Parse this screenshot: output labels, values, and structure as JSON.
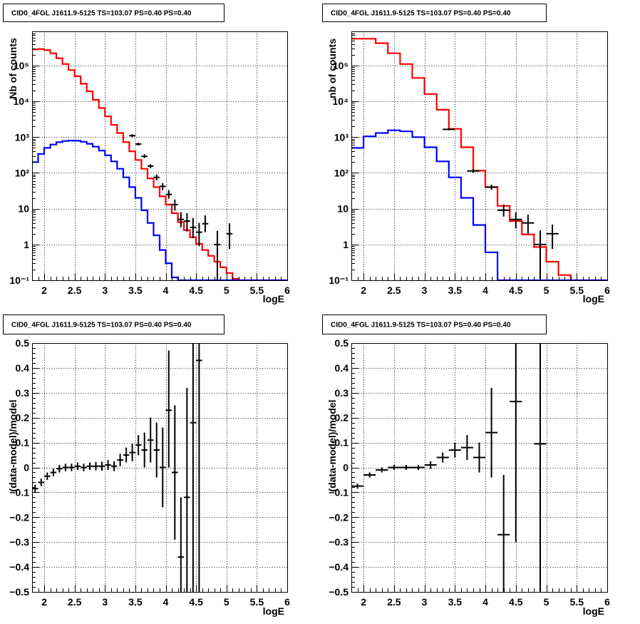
{
  "colors": {
    "data": "#000000",
    "total_model": "#ff0000",
    "source_model": "#0000ff",
    "grid": "#000000"
  },
  "chart_data": [
    {
      "type": "line",
      "title": "CID0_4FGL J1611.9-5125 TS=103.07 PS=0.40 PS=0.40",
      "xlabel": "logE",
      "ylabel": "Nb of counts",
      "log_y": true,
      "xlim": [
        1.8,
        6.0
      ],
      "ylim": [
        0.1,
        900000
      ],
      "grid": true,
      "x_ticks": [
        "2",
        "2.5",
        "3",
        "3.5",
        "4",
        "4.5",
        "5",
        "5.5",
        "6"
      ],
      "y_ticks": [
        "10⁻¹",
        "1",
        "10",
        "10²",
        "10³",
        "10⁴",
        "10⁵"
      ],
      "bin_edges": [
        1.8,
        1.9,
        2.0,
        2.1,
        2.2,
        2.3,
        2.4,
        2.5,
        2.6,
        2.7,
        2.8,
        2.9,
        3.0,
        3.1,
        3.2,
        3.3,
        3.4,
        3.5,
        3.6,
        3.7,
        3.8,
        3.9,
        4.0,
        4.1,
        4.2,
        4.3,
        4.4,
        4.5,
        4.6,
        4.7,
        4.8,
        4.9,
        5.0,
        5.1,
        5.2,
        5.3,
        5.4,
        5.5,
        5.6,
        5.7,
        5.8,
        5.9,
        6.0
      ],
      "series": [
        {
          "role": "total_model",
          "values": [
            280000,
            290000,
            270000,
            220000,
            160000,
            110000,
            75000,
            50000,
            31000,
            19000,
            11000,
            6500,
            3800,
            2200,
            1300,
            720,
            400,
            230,
            130,
            70,
            40,
            22,
            13,
            7.5,
            4.2,
            2.5,
            1.6,
            1.05,
            0.7,
            0.48,
            0.33,
            0.23,
            0.16,
            0.11,
            0.1,
            0.1,
            0.1,
            0.1,
            0.1,
            0.1,
            0.1,
            0.1
          ]
        },
        {
          "role": "source_model",
          "values": [
            200,
            340,
            500,
            620,
            720,
            780,
            800,
            790,
            740,
            650,
            540,
            420,
            310,
            210,
            130,
            75,
            40,
            20,
            9,
            4,
            1.8,
            0.7,
            0.3,
            0.12,
            0.1,
            0.1,
            0.1,
            0.1,
            0.1,
            0.1,
            0.1,
            0.1,
            0.1,
            0.1,
            0.1,
            0.1,
            0.1,
            0.1,
            0.1,
            0.1,
            0.1,
            0.1
          ]
        }
      ],
      "data_points": [
        {
          "x": 3.45,
          "y": 1100,
          "xerr": 0.05,
          "ylo": 1000,
          "yhi": 1200
        },
        {
          "x": 3.55,
          "y": 640,
          "xerr": 0.05,
          "ylo": 580,
          "yhi": 700
        },
        {
          "x": 3.65,
          "y": 290,
          "xerr": 0.05,
          "ylo": 260,
          "yhi": 330
        },
        {
          "x": 3.75,
          "y": 155,
          "xerr": 0.05,
          "ylo": 135,
          "yhi": 175
        },
        {
          "x": 3.85,
          "y": 75,
          "xerr": 0.05,
          "ylo": 62,
          "yhi": 90
        },
        {
          "x": 3.95,
          "y": 42,
          "xerr": 0.05,
          "ylo": 33,
          "yhi": 52
        },
        {
          "x": 4.05,
          "y": 25,
          "xerr": 0.05,
          "ylo": 19,
          "yhi": 33
        },
        {
          "x": 4.15,
          "y": 13,
          "xerr": 0.05,
          "ylo": 9,
          "yhi": 18
        },
        {
          "x": 4.25,
          "y": 5,
          "xerr": 0.05,
          "ylo": 3,
          "yhi": 8
        },
        {
          "x": 4.35,
          "y": 4.5,
          "xerr": 0.05,
          "ylo": 2.3,
          "yhi": 7.5
        },
        {
          "x": 4.45,
          "y": 3,
          "xerr": 0.05,
          "ylo": 1.5,
          "yhi": 5.5
        },
        {
          "x": 4.55,
          "y": 2.2,
          "xerr": 0.05,
          "ylo": 0.9,
          "yhi": 4
        },
        {
          "x": 4.65,
          "y": 3.8,
          "xerr": 0.05,
          "ylo": 2.2,
          "yhi": 6.5
        },
        {
          "x": 4.85,
          "y": 1,
          "xerr": 0.05,
          "ylo": 0.1,
          "yhi": 2.4
        },
        {
          "x": 5.05,
          "y": 2,
          "xerr": 0.05,
          "ylo": 0.75,
          "yhi": 3.9
        }
      ]
    },
    {
      "type": "line",
      "title": "CID0_4FGL J1611.9-5125 TS=103.07 PS=0.40 PS=0.40",
      "xlabel": "logE",
      "ylabel": "nb of counts",
      "log_y": true,
      "xlim": [
        1.8,
        6.0
      ],
      "ylim": [
        0.1,
        900000
      ],
      "grid": true,
      "x_ticks": [
        "2",
        "2.5",
        "3",
        "3.5",
        "4",
        "4.5",
        "5",
        "5.5",
        "6"
      ],
      "y_ticks": [
        "10⁻¹",
        "1",
        "10",
        "10²",
        "10³",
        "10⁴",
        "10⁵"
      ],
      "bin_edges": [
        1.8,
        2.0,
        2.2,
        2.4,
        2.6,
        2.8,
        3.0,
        3.2,
        3.4,
        3.6,
        3.8,
        4.0,
        4.2,
        4.4,
        4.6,
        4.8,
        5.0,
        5.2,
        5.4,
        5.6,
        5.8,
        6.0
      ],
      "series": [
        {
          "role": "total_model",
          "values": [
            560000,
            560000,
            420000,
            220000,
            110000,
            45000,
            16000,
            5800,
            1700,
            520,
            115,
            40,
            12,
            4.5,
            1.9,
            0.85,
            0.33,
            0.14,
            0.1,
            0.1,
            0.1
          ]
        },
        {
          "role": "source_model",
          "values": [
            500,
            1050,
            1300,
            1550,
            1450,
            1000,
            520,
            210,
            75,
            20,
            3.5,
            0.6,
            0.1,
            0.1,
            0.1,
            0.1,
            0.1,
            0.1,
            0.1,
            0.1,
            0.1
          ]
        }
      ],
      "data_points": [
        {
          "x": 3.4,
          "y": 1650,
          "xerr": 0.1,
          "ylo": 1550,
          "yhi": 1750
        },
        {
          "x": 3.8,
          "y": 113,
          "xerr": 0.1,
          "ylo": 100,
          "yhi": 127
        },
        {
          "x": 4.1,
          "y": 40,
          "xerr": 0.1,
          "ylo": 34,
          "yhi": 47
        },
        {
          "x": 4.3,
          "y": 9,
          "xerr": 0.1,
          "ylo": 6,
          "yhi": 13
        },
        {
          "x": 4.5,
          "y": 5,
          "xerr": 0.1,
          "ylo": 2.8,
          "yhi": 8
        },
        {
          "x": 4.7,
          "y": 4,
          "xerr": 0.1,
          "ylo": 2,
          "yhi": 6.8
        },
        {
          "x": 4.9,
          "y": 1,
          "xerr": 0.1,
          "ylo": 0.1,
          "yhi": 2.5
        },
        {
          "x": 5.1,
          "y": 2,
          "xerr": 0.1,
          "ylo": 0.75,
          "yhi": 3.6
        }
      ]
    },
    {
      "type": "scatter",
      "title": "CID0_4FGL J1611.9-5125 TS=103.07 PS=0.40 PS=0.40",
      "xlabel": "logE",
      "ylabel": "(data-model)/model",
      "log_y": false,
      "xlim": [
        1.8,
        6.0
      ],
      "ylim": [
        -0.5,
        0.5
      ],
      "grid": true,
      "x_ticks": [
        "2",
        "2.5",
        "3",
        "3.5",
        "4",
        "4.5",
        "5",
        "5.5",
        "6"
      ],
      "y_ticks": [
        "−0.5",
        "−0.4",
        "−0.3",
        "−0.2",
        "−0.1",
        "0",
        "0.1",
        "0.2",
        "0.3",
        "0.4",
        "0.5"
      ],
      "data_points": [
        {
          "x": 1.85,
          "y": -0.085,
          "xerr": 0.05,
          "ylo": -0.1,
          "yhi": -0.07
        },
        {
          "x": 1.95,
          "y": -0.06,
          "xerr": 0.05,
          "ylo": -0.075,
          "yhi": -0.045
        },
        {
          "x": 2.05,
          "y": -0.035,
          "xerr": 0.05,
          "ylo": -0.05,
          "yhi": -0.02
        },
        {
          "x": 2.15,
          "y": -0.02,
          "xerr": 0.05,
          "ylo": -0.035,
          "yhi": -0.005
        },
        {
          "x": 2.25,
          "y": -0.005,
          "xerr": 0.05,
          "ylo": -0.02,
          "yhi": 0.01
        },
        {
          "x": 2.35,
          "y": 0.0,
          "xerr": 0.05,
          "ylo": -0.015,
          "yhi": 0.015
        },
        {
          "x": 2.45,
          "y": 0.0,
          "xerr": 0.05,
          "ylo": -0.015,
          "yhi": 0.015
        },
        {
          "x": 2.55,
          "y": 0.005,
          "xerr": 0.05,
          "ylo": -0.01,
          "yhi": 0.02
        },
        {
          "x": 2.65,
          "y": 0.0,
          "xerr": 0.05,
          "ylo": -0.015,
          "yhi": 0.015
        },
        {
          "x": 2.75,
          "y": 0.005,
          "xerr": 0.05,
          "ylo": -0.01,
          "yhi": 0.02
        },
        {
          "x": 2.85,
          "y": 0.005,
          "xerr": 0.05,
          "ylo": -0.012,
          "yhi": 0.022
        },
        {
          "x": 2.95,
          "y": 0.005,
          "xerr": 0.05,
          "ylo": -0.013,
          "yhi": 0.023
        },
        {
          "x": 3.05,
          "y": 0.01,
          "xerr": 0.05,
          "ylo": -0.01,
          "yhi": 0.03
        },
        {
          "x": 3.15,
          "y": 0.005,
          "xerr": 0.05,
          "ylo": -0.015,
          "yhi": 0.025
        },
        {
          "x": 3.25,
          "y": 0.03,
          "xerr": 0.05,
          "ylo": 0.005,
          "yhi": 0.055
        },
        {
          "x": 3.35,
          "y": 0.05,
          "xerr": 0.05,
          "ylo": 0.02,
          "yhi": 0.08
        },
        {
          "x": 3.45,
          "y": 0.06,
          "xerr": 0.05,
          "ylo": 0.025,
          "yhi": 0.095
        },
        {
          "x": 3.55,
          "y": 0.09,
          "xerr": 0.05,
          "ylo": 0.05,
          "yhi": 0.13
        },
        {
          "x": 3.65,
          "y": 0.07,
          "xerr": 0.05,
          "ylo": 0.0,
          "yhi": 0.14
        },
        {
          "x": 3.75,
          "y": 0.11,
          "xerr": 0.05,
          "ylo": 0.02,
          "yhi": 0.2
        },
        {
          "x": 3.85,
          "y": 0.07,
          "xerr": 0.05,
          "ylo": -0.04,
          "yhi": 0.18
        },
        {
          "x": 3.95,
          "y": 0.0,
          "xerr": 0.05,
          "ylo": -0.16,
          "yhi": 0.16
        },
        {
          "x": 4.05,
          "y": 0.23,
          "xerr": 0.05,
          "ylo": 0.0,
          "yhi": 0.47
        },
        {
          "x": 4.15,
          "y": -0.02,
          "xerr": 0.05,
          "ylo": -0.29,
          "yhi": 0.25
        },
        {
          "x": 4.25,
          "y": -0.36,
          "xerr": 0.05,
          "ylo": -0.5,
          "yhi": -0.12
        },
        {
          "x": 4.35,
          "y": -0.12,
          "xerr": 0.05,
          "ylo": -0.5,
          "yhi": 0.32
        },
        {
          "x": 4.45,
          "y": 0.18,
          "xerr": 0.05,
          "ylo": -0.5,
          "yhi": 0.5
        },
        {
          "x": 4.55,
          "y": 0.43,
          "xerr": 0.05,
          "ylo": -0.5,
          "yhi": 0.5
        }
      ]
    },
    {
      "type": "scatter",
      "title": "CID0_4FGL J1611.9-5125 TS=103.07 PS=0.40 PS=0.40",
      "xlabel": "logE",
      "ylabel": "(data-model)/model",
      "log_y": false,
      "xlim": [
        1.8,
        6.0
      ],
      "ylim": [
        -0.5,
        0.5
      ],
      "grid": true,
      "x_ticks": [
        "2",
        "2.5",
        "3",
        "3.5",
        "4",
        "4.5",
        "5",
        "5.5",
        "6"
      ],
      "y_ticks": [
        "−0.5",
        "−0.4",
        "−0.3",
        "−0.2",
        "−0.1",
        "0",
        "0.1",
        "0.2",
        "0.3",
        "0.4",
        "0.5"
      ],
      "data_points": [
        {
          "x": 1.9,
          "y": -0.075,
          "xerr": 0.1,
          "ylo": -0.085,
          "yhi": -0.065
        },
        {
          "x": 2.1,
          "y": -0.03,
          "xerr": 0.1,
          "ylo": -0.04,
          "yhi": -0.02
        },
        {
          "x": 2.3,
          "y": -0.01,
          "xerr": 0.1,
          "ylo": -0.02,
          "yhi": 0.0
        },
        {
          "x": 2.5,
          "y": 0.0,
          "xerr": 0.1,
          "ylo": -0.01,
          "yhi": 0.01
        },
        {
          "x": 2.7,
          "y": 0.0,
          "xerr": 0.1,
          "ylo": -0.01,
          "yhi": 0.01
        },
        {
          "x": 2.9,
          "y": 0.0,
          "xerr": 0.1,
          "ylo": -0.01,
          "yhi": 0.01
        },
        {
          "x": 3.1,
          "y": 0.01,
          "xerr": 0.1,
          "ylo": -0.005,
          "yhi": 0.025
        },
        {
          "x": 3.3,
          "y": 0.04,
          "xerr": 0.1,
          "ylo": 0.02,
          "yhi": 0.06
        },
        {
          "x": 3.5,
          "y": 0.07,
          "xerr": 0.1,
          "ylo": 0.04,
          "yhi": 0.1
        },
        {
          "x": 3.7,
          "y": 0.08,
          "xerr": 0.1,
          "ylo": 0.03,
          "yhi": 0.13
        },
        {
          "x": 3.9,
          "y": 0.04,
          "xerr": 0.1,
          "ylo": -0.02,
          "yhi": 0.1
        },
        {
          "x": 4.1,
          "y": 0.14,
          "xerr": 0.1,
          "ylo": -0.04,
          "yhi": 0.32
        },
        {
          "x": 4.3,
          "y": -0.27,
          "xerr": 0.1,
          "ylo": -0.5,
          "yhi": -0.03
        },
        {
          "x": 4.5,
          "y": 0.265,
          "xerr": 0.1,
          "ylo": -0.3,
          "yhi": 0.5
        },
        {
          "x": 4.9,
          "y": 0.095,
          "xerr": 0.1,
          "ylo": -0.5,
          "yhi": 0.5
        }
      ]
    }
  ]
}
